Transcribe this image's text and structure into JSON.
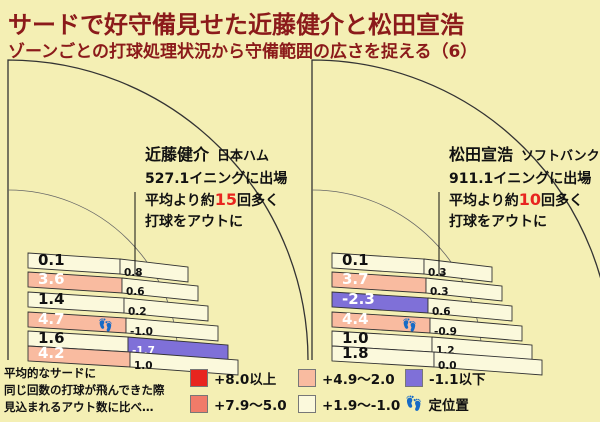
{
  "header": {
    "title": "サードで好守備見せた近藤健介と松田宣浩",
    "subtitle": "ゾーンごとの打球処理状況から守備範囲の広さを捉える（6）"
  },
  "colors": {
    "le8": "#e8251f",
    "r7_9to5": "#f07b69",
    "r4_9to2": "#f9bba0",
    "r1_9to_m1": "#fbf9dc",
    "le_m1_1": "#7f70d8",
    "bg": "#f4efb4"
  },
  "chart_data": [
    {
      "type": "zone-fan",
      "player": "近藤健介",
      "team": "日本ハム",
      "innings_line": "527.1イニングに出場",
      "summary_pre": "平均より約",
      "summary_num": "15",
      "summary_post": "回多く",
      "summary_line2": "打球をアウトに",
      "outer_values": [
        "0.1",
        "3.6",
        "1.4",
        "4.7",
        "1.6",
        "4.2"
      ],
      "inner_values": [
        "0.8",
        "0.6",
        "0.2",
        "-1.0",
        "-1.7",
        "1.0"
      ],
      "outer_colors": [
        "r1_9to_m1",
        "r4_9to2",
        "r1_9to_m1",
        "r4_9to2",
        "r1_9to_m1",
        "r4_9to2"
      ],
      "inner_colors": [
        "r1_9to_m1",
        "r1_9to_m1",
        "r1_9to_m1",
        "r1_9to_m1",
        "le_m1_1",
        "r1_9to_m1"
      ],
      "position_wedge": 3
    },
    {
      "type": "zone-fan",
      "player": "松田宣浩",
      "team": "ソフトバンク",
      "innings_line": "911.1イニングに出場",
      "summary_pre": "平均より約",
      "summary_num": "10",
      "summary_post": "回多く",
      "summary_line2": "打球をアウトに",
      "outer_values": [
        "0.1",
        "3.7",
        "-2.3",
        "4.4",
        "1.0",
        "1.8"
      ],
      "inner_values": [
        "0.3",
        "0.3",
        "0.6",
        "-0.9",
        "1.2",
        "0.0"
      ],
      "outer_colors": [
        "r1_9to_m1",
        "r4_9to2",
        "le_m1_1",
        "r4_9to2",
        "r1_9to_m1",
        "r1_9to_m1"
      ],
      "inner_colors": [
        "r1_9to_m1",
        "r1_9to_m1",
        "r1_9to_m1",
        "r1_9to_m1",
        "r1_9to_m1",
        "r1_9to_m1"
      ],
      "position_wedge": 3
    }
  ],
  "legend": {
    "note_lines": [
      "平均的なサードに",
      "同じ回数の打球が飛んできた際",
      "見込まれるアウト数に比べ…"
    ],
    "items": [
      {
        "label": "+8.0以上",
        "color": "le8"
      },
      {
        "label": "+7.9〜5.0",
        "color": "r7_9to5"
      },
      {
        "label": "+4.9〜2.0",
        "color": "r4_9to2"
      },
      {
        "label": "+1.9〜-1.0",
        "color": "r1_9to_m1"
      },
      {
        "label": "-1.1以下",
        "color": "le_m1_1"
      },
      {
        "label": "定位置",
        "icon": "footprints-icon"
      }
    ]
  }
}
